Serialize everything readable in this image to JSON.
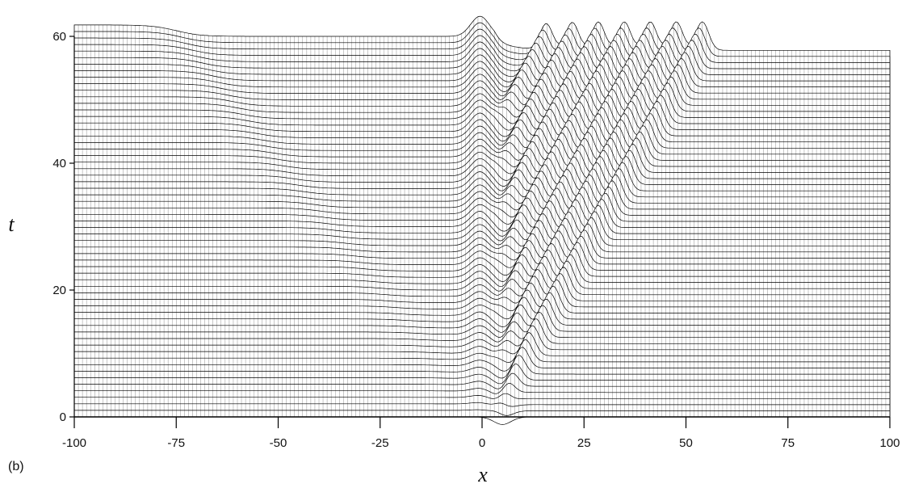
{
  "figure": {
    "panel_label": "(b)"
  },
  "chart_data": {
    "type": "line",
    "title": "",
    "xlabel": "x",
    "ylabel": "t",
    "xlim": [
      -100,
      100
    ],
    "ylim": [
      0,
      60
    ],
    "x_ticks": [
      -100,
      -75,
      -50,
      -25,
      0,
      25,
      50,
      75,
      100
    ],
    "x_tick_labels": [
      "-100",
      "-75",
      "-50",
      "-25",
      "0",
      "25",
      "50",
      "75",
      "100"
    ],
    "y_ticks": [
      0,
      20,
      40,
      60
    ],
    "y_tick_labels": [
      "0",
      "20",
      "40",
      "60"
    ],
    "style": "waterfall",
    "grid": true,
    "line_color": "#000000",
    "series_model": {
      "t_step": 1,
      "x_step": 1,
      "soliton_speed": 0.85,
      "soliton_count": 7,
      "soliton_emission_interval": 7.5,
      "central_pulse_center": 0,
      "central_pulse_height": 3.5,
      "left_front_position": -75,
      "left_front_height": 1.8,
      "right_level_drop": -2.2
    }
  }
}
